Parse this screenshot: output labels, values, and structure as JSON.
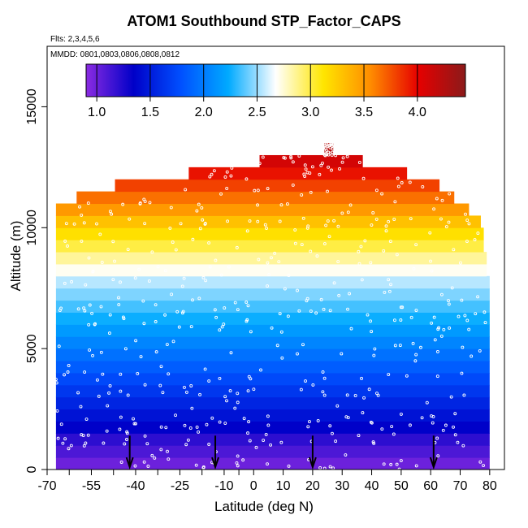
{
  "chart_data": {
    "type": "heatmap",
    "title": "ATOM1 Southbound STP_Factor_CAPS",
    "flights_note": "Flts: 2,3,4,5,6",
    "dates_note": "MMDD: 0801,0803,0806,0808,0812",
    "xlabel": "Latitude (deg N)",
    "ylabel": "Altitude (m)",
    "xlim": [
      -70,
      85
    ],
    "ylim": [
      0,
      17500
    ],
    "x_ticks": [
      -70,
      -55,
      -40,
      -25,
      -10,
      0,
      10,
      20,
      30,
      40,
      50,
      60,
      70,
      80
    ],
    "x_tick_labels": [
      "-70",
      "-55",
      "-40",
      "-25",
      "-10",
      "0",
      "10",
      "20",
      "30",
      "40",
      "50",
      "60",
      "70",
      "80"
    ],
    "extra_x_ticks": [
      -62.5,
      -47.5,
      -32.5,
      -17.5,
      -5
    ],
    "y_ticks": [
      0,
      5000,
      10000,
      15000
    ],
    "y_tick_labels": [
      "0",
      "5000",
      "10000",
      "15000"
    ],
    "colorbar": {
      "min": 0.9,
      "max": 4.45,
      "ticks": [
        1.0,
        1.5,
        2.0,
        2.5,
        3.0,
        3.5,
        4.0
      ],
      "tick_labels": [
        "1.0",
        "1.5",
        "2.0",
        "2.5",
        "3.0",
        "3.5",
        "4.0"
      ],
      "colors": [
        "#8b2be2",
        "#0000c8",
        "#0050ff",
        "#00aaff",
        "#ffffff",
        "#ffe600",
        "#ff8c00",
        "#e60000",
        "#8b1a1a"
      ]
    },
    "altitude_layers_m": [
      0,
      500,
      1000,
      1500,
      2000,
      2500,
      3000,
      3500,
      4000,
      4500,
      5000,
      5500,
      6000,
      6500,
      7000,
      7500,
      8000,
      8500,
      9000,
      9500,
      10000,
      10500,
      11000,
      11500,
      12000,
      12500,
      13000
    ],
    "layer_lat_ranges": [
      [
        -67,
        80
      ],
      [
        -67,
        80
      ],
      [
        -67,
        80
      ],
      [
        -67,
        80
      ],
      [
        -67,
        80
      ],
      [
        -67,
        80
      ],
      [
        -67,
        80
      ],
      [
        -67,
        80
      ],
      [
        -67,
        80
      ],
      [
        -67,
        80
      ],
      [
        -67,
        80
      ],
      [
        -67,
        80
      ],
      [
        -67,
        80
      ],
      [
        -67,
        80
      ],
      [
        -67,
        80
      ],
      [
        -67,
        80
      ],
      [
        -67,
        79
      ],
      [
        -67,
        79
      ],
      [
        -67,
        78
      ],
      [
        -67,
        78
      ],
      [
        -67,
        77
      ],
      [
        -67,
        73
      ],
      [
        -60,
        68
      ],
      [
        -47,
        63
      ],
      [
        -22,
        52
      ],
      [
        2,
        37
      ],
      [
        24,
        27
      ]
    ],
    "layer_values": [
      1.0,
      1.1,
      1.2,
      1.35,
      1.45,
      1.55,
      1.65,
      1.75,
      1.85,
      1.95,
      2.05,
      2.15,
      2.25,
      2.35,
      2.45,
      2.55,
      2.7,
      2.85,
      3.0,
      3.15,
      3.3,
      3.5,
      3.65,
      3.8,
      3.95,
      4.1,
      4.25
    ],
    "flight_arrow_latitudes": [
      -42,
      -13,
      20,
      61
    ]
  }
}
